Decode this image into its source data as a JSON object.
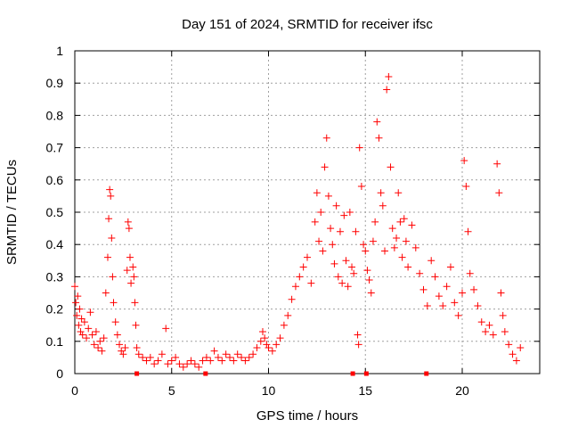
{
  "chart_data": {
    "type": "scatter",
    "title": "Day 151 of 2024, SRMTID for receiver ifsc",
    "xlabel": "GPS time / hours",
    "ylabel": "SRMTID / TECUs",
    "xlim": [
      0,
      24
    ],
    "ylim": [
      0,
      1
    ],
    "xticks": [
      0,
      5,
      10,
      15,
      20
    ],
    "xtick_labels": [
      "0",
      "5",
      "10",
      "15",
      "20"
    ],
    "yticks": [
      0,
      0.1,
      0.2,
      0.3,
      0.4,
      0.5,
      0.6,
      0.7,
      0.8,
      0.9,
      1
    ],
    "ytick_labels": [
      "0",
      "0.1",
      "0.2",
      "0.3",
      "0.4",
      "0.5",
      "0.6",
      "0.7",
      "0.8",
      "0.9",
      "1"
    ],
    "grid": true,
    "marker": "+",
    "color": "#ff0000",
    "series": [
      {
        "name": "SRMTID",
        "points": [
          [
            0.0,
            0.27
          ],
          [
            0.05,
            0.22
          ],
          [
            0.1,
            0.18
          ],
          [
            0.15,
            0.24
          ],
          [
            0.2,
            0.15
          ],
          [
            0.25,
            0.2
          ],
          [
            0.3,
            0.13
          ],
          [
            0.35,
            0.17
          ],
          [
            0.4,
            0.12
          ],
          [
            0.5,
            0.16
          ],
          [
            0.6,
            0.11
          ],
          [
            0.7,
            0.14
          ],
          [
            0.8,
            0.19
          ],
          [
            0.9,
            0.12
          ],
          [
            1.0,
            0.09
          ],
          [
            1.1,
            0.13
          ],
          [
            1.2,
            0.08
          ],
          [
            1.3,
            0.1
          ],
          [
            1.4,
            0.07
          ],
          [
            1.5,
            0.11
          ],
          [
            1.6,
            0.25
          ],
          [
            1.7,
            0.36
          ],
          [
            1.75,
            0.48
          ],
          [
            1.8,
            0.57
          ],
          [
            1.85,
            0.55
          ],
          [
            1.9,
            0.42
          ],
          [
            1.95,
            0.3
          ],
          [
            2.0,
            0.22
          ],
          [
            2.1,
            0.16
          ],
          [
            2.2,
            0.12
          ],
          [
            2.3,
            0.09
          ],
          [
            2.4,
            0.07
          ],
          [
            2.5,
            0.06
          ],
          [
            2.6,
            0.08
          ],
          [
            2.7,
            0.32
          ],
          [
            2.75,
            0.47
          ],
          [
            2.8,
            0.45
          ],
          [
            2.85,
            0.36
          ],
          [
            2.9,
            0.28
          ],
          [
            3.0,
            0.33
          ],
          [
            3.05,
            0.3
          ],
          [
            3.1,
            0.22
          ],
          [
            3.15,
            0.15
          ],
          [
            3.2,
            0.08
          ],
          [
            3.3,
            0.06
          ],
          [
            3.5,
            0.05
          ],
          [
            3.7,
            0.04
          ],
          [
            3.9,
            0.05
          ],
          [
            4.1,
            0.03
          ],
          [
            4.3,
            0.04
          ],
          [
            4.5,
            0.06
          ],
          [
            4.7,
            0.14
          ],
          [
            4.8,
            0.03
          ],
          [
            5.0,
            0.04
          ],
          [
            5.2,
            0.05
          ],
          [
            5.4,
            0.03
          ],
          [
            5.6,
            0.02
          ],
          [
            5.8,
            0.03
          ],
          [
            6.0,
            0.04
          ],
          [
            6.2,
            0.03
          ],
          [
            6.4,
            0.02
          ],
          [
            6.6,
            0.04
          ],
          [
            6.8,
            0.05
          ],
          [
            7.0,
            0.04
          ],
          [
            7.2,
            0.07
          ],
          [
            7.4,
            0.05
          ],
          [
            7.6,
            0.04
          ],
          [
            7.8,
            0.06
          ],
          [
            8.0,
            0.05
          ],
          [
            8.2,
            0.04
          ],
          [
            8.4,
            0.06
          ],
          [
            8.6,
            0.05
          ],
          [
            8.8,
            0.04
          ],
          [
            9.0,
            0.05
          ],
          [
            9.2,
            0.06
          ],
          [
            9.4,
            0.08
          ],
          [
            9.6,
            0.1
          ],
          [
            9.7,
            0.13
          ],
          [
            9.8,
            0.11
          ],
          [
            9.9,
            0.09
          ],
          [
            10.0,
            0.08
          ],
          [
            10.2,
            0.07
          ],
          [
            10.4,
            0.09
          ],
          [
            10.6,
            0.11
          ],
          [
            10.8,
            0.15
          ],
          [
            11.0,
            0.18
          ],
          [
            11.2,
            0.23
          ],
          [
            11.4,
            0.27
          ],
          [
            11.6,
            0.3
          ],
          [
            11.8,
            0.33
          ],
          [
            12.0,
            0.36
          ],
          [
            12.2,
            0.28
          ],
          [
            12.4,
            0.47
          ],
          [
            12.5,
            0.56
          ],
          [
            12.6,
            0.41
          ],
          [
            12.7,
            0.5
          ],
          [
            12.8,
            0.38
          ],
          [
            12.9,
            0.64
          ],
          [
            13.0,
            0.73
          ],
          [
            13.1,
            0.55
          ],
          [
            13.2,
            0.45
          ],
          [
            13.3,
            0.4
          ],
          [
            13.4,
            0.34
          ],
          [
            13.5,
            0.52
          ],
          [
            13.6,
            0.3
          ],
          [
            13.7,
            0.44
          ],
          [
            13.8,
            0.28
          ],
          [
            13.9,
            0.49
          ],
          [
            14.0,
            0.35
          ],
          [
            14.1,
            0.27
          ],
          [
            14.2,
            0.5
          ],
          [
            14.3,
            0.33
          ],
          [
            14.4,
            0.31
          ],
          [
            14.5,
            0.44
          ],
          [
            14.6,
            0.12
          ],
          [
            14.65,
            0.09
          ],
          [
            14.7,
            0.7
          ],
          [
            14.8,
            0.58
          ],
          [
            14.9,
            0.4
          ],
          [
            15.0,
            0.38
          ],
          [
            15.1,
            0.32
          ],
          [
            15.2,
            0.29
          ],
          [
            15.3,
            0.25
          ],
          [
            15.4,
            0.41
          ],
          [
            15.5,
            0.47
          ],
          [
            15.6,
            0.78
          ],
          [
            15.7,
            0.73
          ],
          [
            15.8,
            0.56
          ],
          [
            15.9,
            0.52
          ],
          [
            16.0,
            0.38
          ],
          [
            16.1,
            0.88
          ],
          [
            16.2,
            0.92
          ],
          [
            16.3,
            0.64
          ],
          [
            16.4,
            0.45
          ],
          [
            16.5,
            0.39
          ],
          [
            16.6,
            0.42
          ],
          [
            16.7,
            0.56
          ],
          [
            16.8,
            0.47
          ],
          [
            16.9,
            0.36
          ],
          [
            17.0,
            0.48
          ],
          [
            17.1,
            0.41
          ],
          [
            17.2,
            0.33
          ],
          [
            17.4,
            0.46
          ],
          [
            17.6,
            0.39
          ],
          [
            17.8,
            0.31
          ],
          [
            18.0,
            0.26
          ],
          [
            18.2,
            0.21
          ],
          [
            18.4,
            0.35
          ],
          [
            18.6,
            0.3
          ],
          [
            18.8,
            0.24
          ],
          [
            19.0,
            0.21
          ],
          [
            19.2,
            0.27
          ],
          [
            19.4,
            0.33
          ],
          [
            19.6,
            0.22
          ],
          [
            19.8,
            0.18
          ],
          [
            20.0,
            0.25
          ],
          [
            20.1,
            0.66
          ],
          [
            20.2,
            0.58
          ],
          [
            20.3,
            0.44
          ],
          [
            20.4,
            0.31
          ],
          [
            20.6,
            0.26
          ],
          [
            20.8,
            0.21
          ],
          [
            21.0,
            0.16
          ],
          [
            21.2,
            0.13
          ],
          [
            21.4,
            0.15
          ],
          [
            21.6,
            0.12
          ],
          [
            21.8,
            0.65
          ],
          [
            21.9,
            0.56
          ],
          [
            22.0,
            0.25
          ],
          [
            22.1,
            0.18
          ],
          [
            22.2,
            0.13
          ],
          [
            22.4,
            0.09
          ],
          [
            22.6,
            0.06
          ],
          [
            22.8,
            0.04
          ],
          [
            23.0,
            0.08
          ]
        ]
      }
    ],
    "gap_markers_x": [
      3.2,
      6.75,
      14.35,
      15.05,
      18.15
    ]
  }
}
